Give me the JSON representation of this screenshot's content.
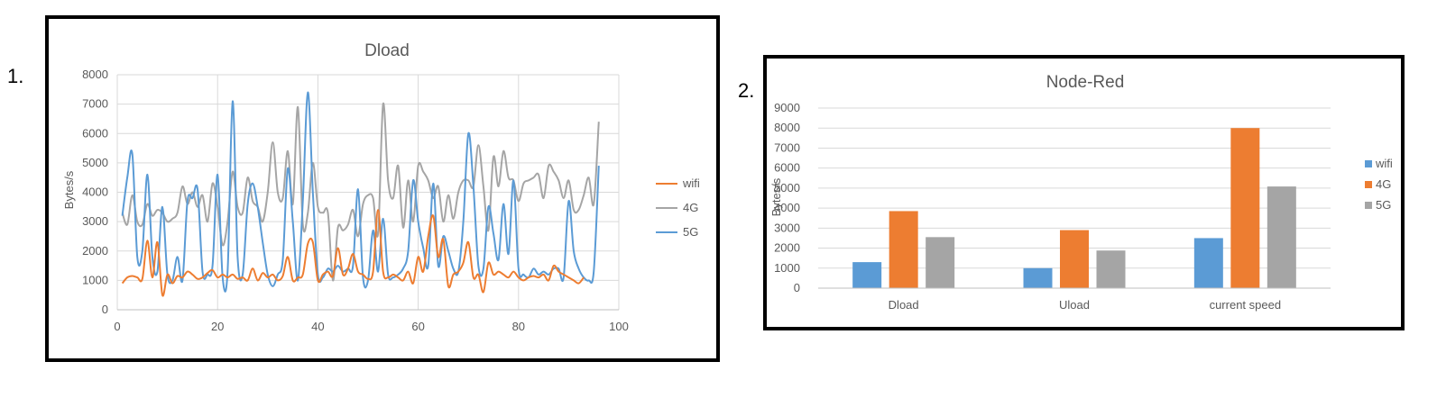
{
  "figure_labels": [
    "1.",
    "2."
  ],
  "chart_data": [
    {
      "type": "line",
      "title": "Dload",
      "xlabel": "",
      "ylabel": "Bytes/s",
      "xlim": [
        0,
        100
      ],
      "ylim": [
        0,
        8000
      ],
      "xticks": [
        0,
        20,
        40,
        60,
        80,
        100
      ],
      "yticks": [
        0,
        1000,
        2000,
        3000,
        4000,
        5000,
        6000,
        7000,
        8000
      ],
      "grid": true,
      "legend_position": "right",
      "series": [
        {
          "name": "wifi",
          "color": "#ED7D31",
          "x": [
            1,
            2,
            3,
            4,
            5,
            6,
            7,
            8,
            9,
            10,
            11,
            12,
            13,
            14,
            15,
            16,
            17,
            18,
            19,
            20,
            21,
            22,
            23,
            24,
            25,
            26,
            27,
            28,
            29,
            30,
            31,
            32,
            33,
            34,
            35,
            36,
            37,
            38,
            39,
            40,
            41,
            42,
            43,
            44,
            45,
            46,
            47,
            48,
            49,
            50,
            51,
            52,
            53,
            54,
            55,
            56,
            57,
            58,
            59,
            60,
            61,
            62,
            63,
            64,
            65,
            66,
            67,
            68,
            69,
            70,
            71,
            72,
            73,
            74,
            75,
            76,
            77,
            78,
            79,
            80,
            81,
            82,
            83,
            84,
            85,
            86,
            87,
            88,
            89,
            90,
            91,
            92,
            93
          ],
          "values": [
            900,
            1100,
            1150,
            1100,
            1050,
            2350,
            1100,
            2300,
            500,
            1200,
            900,
            1150,
            1100,
            1300,
            1200,
            1050,
            1100,
            1250,
            1350,
            1100,
            1200,
            1100,
            1200,
            1050,
            1100,
            1000,
            1400,
            1000,
            1250,
            1100,
            1200,
            1000,
            1150,
            1800,
            1000,
            1100,
            1200,
            2250,
            2300,
            1000,
            1200,
            1300,
            1150,
            2100,
            1200,
            1400,
            1900,
            1300,
            1200,
            1050,
            1300,
            3400,
            1300,
            1100,
            1200,
            1100,
            1000,
            1300,
            900,
            1800,
            1300,
            2500,
            3200,
            1800,
            2400,
            800,
            1200,
            1300,
            1600,
            2300,
            1100,
            1200,
            600,
            1600,
            1200,
            1300,
            1200,
            1100,
            1300,
            1100,
            1000,
            1100,
            1150,
            1100,
            1200,
            1000,
            1500,
            1300,
            1200,
            1100,
            1000,
            900,
            1100
          ]
        },
        {
          "name": "4G",
          "color": "#A5A5A5",
          "x": [
            1,
            2,
            3,
            4,
            5,
            6,
            7,
            8,
            9,
            10,
            11,
            12,
            13,
            14,
            15,
            16,
            17,
            18,
            19,
            20,
            21,
            22,
            23,
            24,
            25,
            26,
            27,
            28,
            29,
            30,
            31,
            32,
            33,
            34,
            35,
            36,
            37,
            38,
            39,
            40,
            41,
            42,
            43,
            44,
            45,
            46,
            47,
            48,
            49,
            50,
            51,
            52,
            53,
            54,
            55,
            56,
            57,
            58,
            59,
            60,
            61,
            62,
            63,
            64,
            65,
            66,
            67,
            68,
            69,
            70,
            71,
            72,
            73,
            74,
            75,
            76,
            77,
            78,
            79,
            80,
            81,
            82,
            83,
            84,
            85,
            86,
            87,
            88,
            89,
            90,
            91,
            92,
            93,
            94,
            95,
            96
          ],
          "values": [
            3300,
            2900,
            3900,
            3000,
            2900,
            3600,
            3200,
            3400,
            3300,
            3000,
            3100,
            3300,
            4200,
            3600,
            4000,
            3500,
            3900,
            3000,
            4300,
            3500,
            2200,
            3000,
            4700,
            3500,
            3300,
            4500,
            3700,
            3500,
            3000,
            4000,
            5700,
            4000,
            3800,
            5400,
            3600,
            6900,
            2900,
            3300,
            5000,
            3500,
            3300,
            3300,
            1000,
            2800,
            2700,
            2900,
            3400,
            2500,
            3600,
            3900,
            3800,
            2600,
            7000,
            4400,
            3800,
            4900,
            2800,
            4400,
            3000,
            4900,
            4700,
            4400,
            3800,
            4200,
            3000,
            3900,
            3100,
            4000,
            4400,
            4400,
            4200,
            5600,
            4200,
            2700,
            5200,
            4200,
            5400,
            4500,
            4400,
            3700,
            4300,
            4400,
            4500,
            4600,
            3800,
            4900,
            4700,
            4400,
            3800,
            4400,
            3400,
            3400,
            3900,
            4500,
            3600,
            6400
          ]
        },
        {
          "name": "5G",
          "color": "#5B9BD5",
          "x": [
            1,
            2,
            3,
            4,
            5,
            6,
            7,
            8,
            9,
            10,
            11,
            12,
            13,
            14,
            15,
            16,
            17,
            18,
            19,
            20,
            21,
            22,
            23,
            24,
            25,
            26,
            27,
            28,
            29,
            30,
            31,
            32,
            33,
            34,
            35,
            36,
            37,
            38,
            39,
            40,
            41,
            42,
            43,
            44,
            45,
            46,
            47,
            48,
            49,
            50,
            51,
            52,
            53,
            54,
            55,
            56,
            57,
            58,
            59,
            60,
            61,
            62,
            63,
            64,
            65,
            66,
            67,
            68,
            69,
            70,
            71,
            72,
            73,
            74,
            75,
            76,
            77,
            78,
            79,
            80,
            81,
            82,
            83,
            84,
            85,
            86,
            87,
            88,
            89,
            90,
            91,
            92,
            93,
            94,
            95,
            96
          ],
          "values": [
            3200,
            4500,
            5300,
            1800,
            2000,
            4600,
            1800,
            1300,
            3500,
            1200,
            1000,
            1800,
            1000,
            3700,
            3800,
            4100,
            1300,
            1200,
            1500,
            4600,
            1100,
            1300,
            7100,
            1800,
            1200,
            3600,
            4300,
            3500,
            2300,
            1200,
            800,
            1200,
            1700,
            4800,
            3000,
            1000,
            3700,
            7400,
            4000,
            1200,
            1100,
            1400,
            1300,
            1500,
            1300,
            1400,
            1500,
            4100,
            1100,
            1000,
            2700,
            1300,
            3100,
            1200,
            1100,
            1200,
            1400,
            2000,
            4400,
            3000,
            2100,
            1500,
            4300,
            1500,
            2500,
            2000,
            1400,
            1300,
            3000,
            6000,
            4200,
            1500,
            1400,
            3500,
            2600,
            1700,
            3600,
            1900,
            4400,
            1400,
            1200,
            1100,
            1400,
            1200,
            1300,
            1200,
            1400,
            1400,
            1100,
            3700,
            2000,
            1400,
            1100,
            1000,
            1300,
            4900
          ]
        }
      ]
    },
    {
      "type": "bar",
      "title": "Node-Red",
      "xlabel": "",
      "ylabel": "Bytes/s",
      "ylim": [
        0,
        9000
      ],
      "yticks": [
        0,
        1000,
        2000,
        3000,
        4000,
        5000,
        6000,
        7000,
        8000,
        9000
      ],
      "grid": true,
      "legend_position": "right",
      "categories": [
        "Dload",
        "Uload",
        "current speed"
      ],
      "series": [
        {
          "name": "wifi",
          "color": "#5B9BD5",
          "values": [
            1300,
            1000,
            2500
          ]
        },
        {
          "name": "4G",
          "color": "#ED7D31",
          "values": [
            3850,
            2900,
            8000
          ]
        },
        {
          "name": "5G",
          "color": "#A5A5A5",
          "values": [
            2550,
            1880,
            5080
          ]
        }
      ]
    }
  ]
}
